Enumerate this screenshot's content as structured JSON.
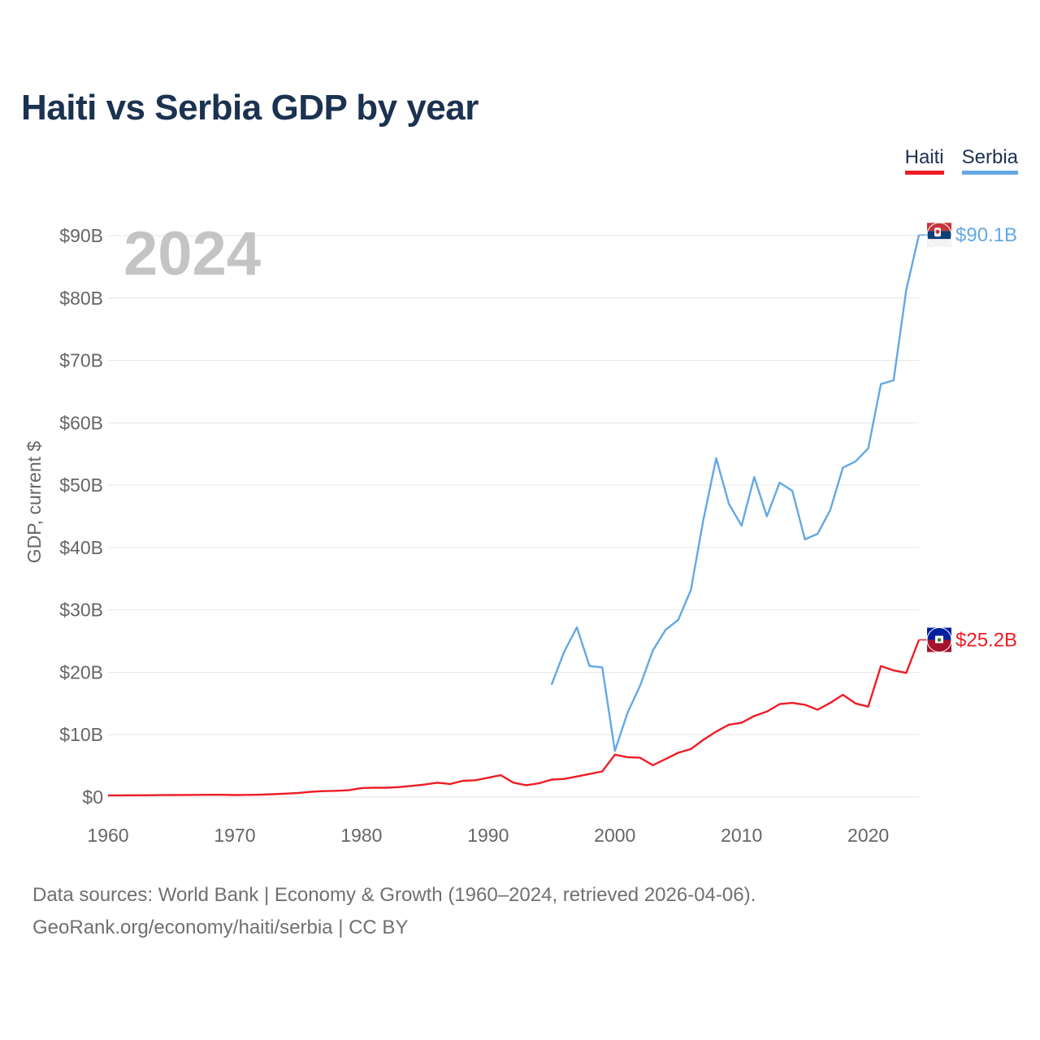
{
  "chart_data": {
    "type": "line",
    "title": "Haiti vs Serbia GDP by year",
    "xlabel": "",
    "ylabel": "GDP, current $",
    "year_label": "2024",
    "xlim": [
      1960,
      2024
    ],
    "ylim": [
      0,
      90
    ],
    "x_ticks": [
      1960,
      1970,
      1980,
      1990,
      2000,
      2010,
      2020
    ],
    "y_ticks": [
      0,
      10,
      20,
      30,
      40,
      50,
      60,
      70,
      80,
      90
    ],
    "y_tick_labels": [
      "$0",
      "$10B",
      "$20B",
      "$30B",
      "$40B",
      "$50B",
      "$60B",
      "$70B",
      "$80B",
      "$90B"
    ],
    "grid": true,
    "series": [
      {
        "name": "Haiti",
        "color": "#ee1c25",
        "end_label": "$25.2B",
        "x": [
          1960,
          1961,
          1962,
          1963,
          1964,
          1965,
          1966,
          1967,
          1968,
          1969,
          1970,
          1971,
          1972,
          1973,
          1974,
          1975,
          1976,
          1977,
          1978,
          1979,
          1980,
          1981,
          1982,
          1983,
          1984,
          1985,
          1986,
          1987,
          1988,
          1989,
          1990,
          1991,
          1992,
          1993,
          1994,
          1995,
          1996,
          1997,
          1998,
          1999,
          2000,
          2001,
          2002,
          2003,
          2004,
          2005,
          2006,
          2007,
          2008,
          2009,
          2010,
          2011,
          2012,
          2013,
          2014,
          2015,
          2016,
          2017,
          2018,
          2019,
          2020,
          2021,
          2022,
          2023,
          2024
        ],
        "values": [
          0.27,
          0.28,
          0.29,
          0.29,
          0.31,
          0.33,
          0.34,
          0.35,
          0.36,
          0.37,
          0.33,
          0.35,
          0.38,
          0.45,
          0.55,
          0.65,
          0.85,
          0.95,
          1.0,
          1.1,
          1.45,
          1.5,
          1.5,
          1.6,
          1.8,
          2.0,
          2.3,
          2.1,
          2.6,
          2.7,
          3.1,
          3.5,
          2.3,
          1.9,
          2.2,
          2.8,
          2.9,
          3.3,
          3.7,
          4.1,
          6.8,
          6.4,
          6.3,
          5.1,
          6.1,
          7.1,
          7.7,
          9.2,
          10.5,
          11.6,
          11.9,
          13.0,
          13.7,
          14.9,
          15.1,
          14.8,
          14.0,
          15.1,
          16.4,
          15.0,
          14.5,
          21.0,
          20.3,
          19.9,
          25.2
        ]
      },
      {
        "name": "Serbia",
        "color": "#64a8e4",
        "end_label": "$90.1B",
        "x": [
          1995,
          1996,
          1997,
          1998,
          1999,
          2000,
          2001,
          2002,
          2003,
          2004,
          2005,
          2006,
          2007,
          2008,
          2009,
          2010,
          2011,
          2012,
          2013,
          2014,
          2015,
          2016,
          2017,
          2018,
          2019,
          2020,
          2021,
          2022,
          2023,
          2024
        ],
        "values": [
          18.0,
          23.3,
          27.2,
          21.0,
          20.8,
          7.4,
          13.5,
          17.9,
          23.5,
          26.8,
          28.4,
          33.2,
          44.6,
          54.3,
          47.0,
          43.5,
          51.3,
          45.0,
          50.4,
          49.1,
          41.3,
          42.2,
          46.0,
          52.8,
          53.8,
          55.9,
          66.2,
          66.8,
          81.3,
          90.1
        ]
      }
    ]
  },
  "legend": {
    "items": [
      "Haiti",
      "Serbia"
    ]
  },
  "footer": {
    "line1": "Data sources: World Bank | Economy & Growth (1960–2024, retrieved 2026-04-06).",
    "line2": "GeoRank.org/economy/haiti/serbia | CC BY"
  }
}
